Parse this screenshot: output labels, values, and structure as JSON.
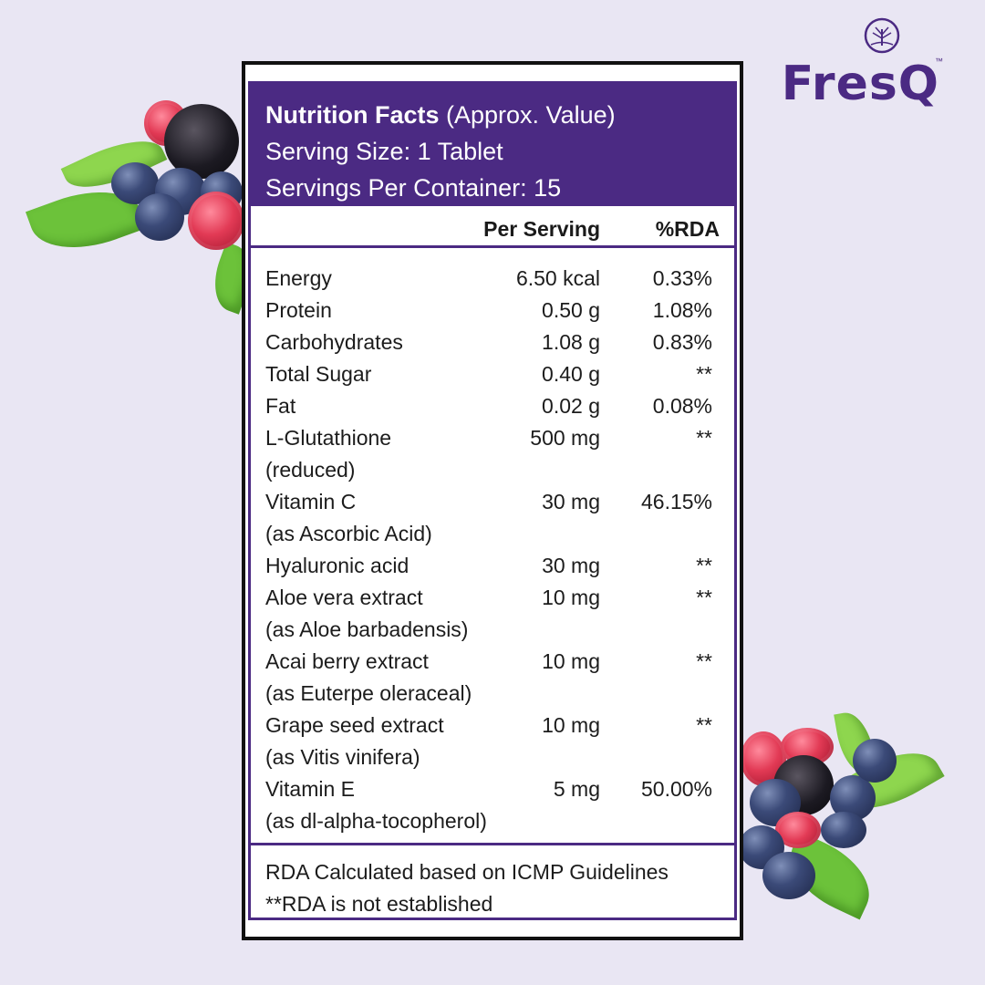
{
  "brand": {
    "name": "FresQ",
    "tm": "™",
    "accent_color": "#4b2a83"
  },
  "panel": {
    "title": "Nutrition Facts",
    "title_note": " (Approx. Value)",
    "serving_size": "Serving Size: 1 Tablet",
    "servings_per_container": "Servings Per Container: 15",
    "columns": {
      "per_serving": "Per Serving",
      "rda": "%RDA"
    },
    "rows": [
      {
        "name": "Energy",
        "sub": "",
        "per_serving": "6.50 kcal",
        "rda": "0.33%"
      },
      {
        "name": "Protein",
        "sub": "",
        "per_serving": "0.50 g",
        "rda": "1.08%"
      },
      {
        "name": "Carbohydrates",
        "sub": "",
        "per_serving": "1.08 g",
        "rda": "0.83%"
      },
      {
        "name": "Total Sugar",
        "sub": "",
        "per_serving": "0.40 g",
        "rda": "**"
      },
      {
        "name": "Fat",
        "sub": "",
        "per_serving": "0.02 g",
        "rda": "0.08%"
      },
      {
        "name": "L-Glutathione",
        "sub": "(reduced)",
        "per_serving": "500 mg",
        "rda": "**"
      },
      {
        "name": "Vitamin C",
        "sub": "(as Ascorbic Acid)",
        "per_serving": "30 mg",
        "rda": "46.15%"
      },
      {
        "name": "Hyaluronic acid",
        "sub": "",
        "per_serving": "30 mg",
        "rda": "**"
      },
      {
        "name": "Aloe vera extract",
        "sub": "(as Aloe barbadensis)",
        "per_serving": "10 mg",
        "rda": "**"
      },
      {
        "name": "Acai berry extract",
        "sub": "(as Euterpe oleraceal)",
        "per_serving": "10 mg",
        "rda": "**"
      },
      {
        "name": "Grape seed extract",
        "sub": "(as Vitis vinifera)",
        "per_serving": "10 mg",
        "rda": "**"
      },
      {
        "name": "Vitamin E",
        "sub": "(as dl-alpha-tocopherol)",
        "per_serving": "5 mg",
        "rda": "50.00%"
      }
    ],
    "footnotes": [
      "RDA Calculated based on ICMP Guidelines",
      "**RDA is not established"
    ]
  },
  "icons": {
    "logo_emblem": "tree-in-circle-icon"
  }
}
